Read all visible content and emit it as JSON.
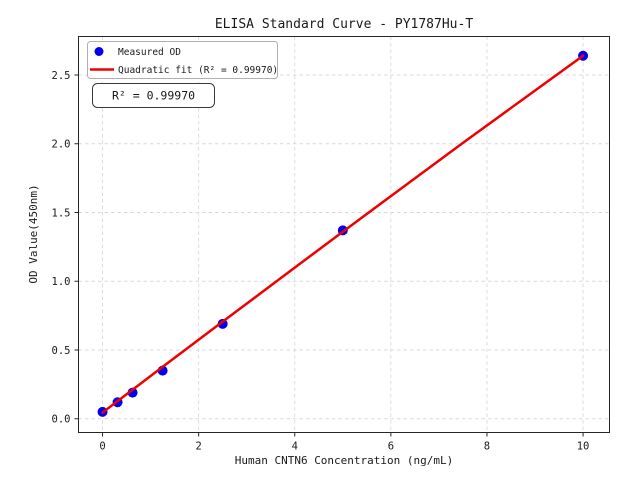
{
  "chart_data": {
    "type": "scatter",
    "title": "ELISA Standard Curve - PY1787Hu-T",
    "xlabel": "Human CNTN6 Concentration (ng/mL)",
    "ylabel": "OD Value(450nm)",
    "xlim": [
      -0.5,
      10.55
    ],
    "ylim": [
      -0.1,
      2.78
    ],
    "x_ticks": [
      0,
      2,
      4,
      6,
      8,
      10
    ],
    "x_tick_labels": [
      "0",
      "2",
      "4",
      "6",
      "8",
      "10"
    ],
    "y_ticks": [
      0.0,
      0.5,
      1.0,
      1.5,
      2.0,
      2.5
    ],
    "y_tick_labels": [
      "0.0",
      "0.5",
      "1.0",
      "1.5",
      "2.0",
      "2.5"
    ],
    "grid": true,
    "grid_style": "dashed",
    "colors": {
      "points": "#0000ee",
      "fit_line": "#ef0000",
      "grid": "#d9d9d9",
      "spine": "#262626",
      "legend_border": "#b0b0b0",
      "annotation_border": "#3a3a3a"
    },
    "legend": {
      "position": "upper-left",
      "entries": [
        {
          "label": "Measured OD",
          "marker": "dot",
          "color": "#0000ee"
        },
        {
          "label": "Quadratic fit (R² = 0.99970)",
          "marker": "line",
          "color": "#ef0000"
        }
      ]
    },
    "annotation": "R² = 0.99970",
    "series": [
      {
        "name": "Measured OD",
        "type": "scatter",
        "color": "#0000ee",
        "x": [
          0,
          0.313,
          0.625,
          1.25,
          2.5,
          5,
          10
        ],
        "y": [
          0.05,
          0.12,
          0.19,
          0.35,
          0.69,
          1.37,
          2.64
        ]
      },
      {
        "name": "Quadratic fit",
        "type": "line",
        "color": "#ef0000",
        "x": [
          0,
          1.25,
          2.5,
          3.75,
          5,
          6.25,
          7.5,
          8.75,
          10
        ],
        "y": [
          0.045,
          0.377,
          0.706,
          1.034,
          1.36,
          1.684,
          2.006,
          2.324,
          2.64
        ]
      }
    ]
  }
}
